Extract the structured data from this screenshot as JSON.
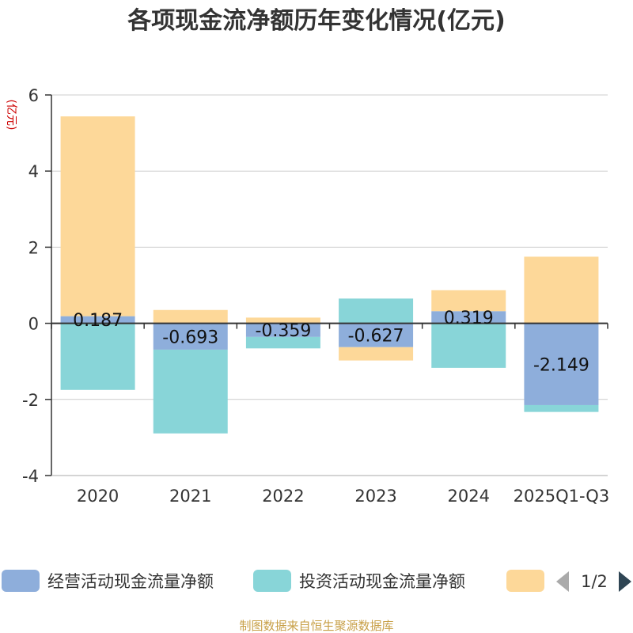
{
  "chart_data": {
    "type": "bar",
    "stacked": true,
    "title": "各项现金流净额历年变化情况(亿元)",
    "ylabel": "(亿元)",
    "xlabel": "",
    "categories": [
      "2020",
      "2021",
      "2022",
      "2023",
      "2024",
      "2025Q1-Q3"
    ],
    "ylim": [
      -4,
      6
    ],
    "yticks": [
      6,
      4,
      2,
      0,
      -2,
      -4
    ],
    "grid": true,
    "series": [
      {
        "name": "经营活动现金流量净额",
        "color": "#8eaedb",
        "values": [
          0.187,
          -0.693,
          -0.359,
          -0.627,
          0.319,
          -2.149
        ],
        "labels": [
          "0.187",
          "-0.693",
          "-0.359",
          "-0.627",
          "0.319",
          "-2.149"
        ]
      },
      {
        "name": "投资活动现金流量净额",
        "color": "#88d5d8",
        "values": [
          -1.75,
          -2.2,
          -0.3,
          0.65,
          -1.17,
          -0.18
        ]
      },
      {
        "name": "",
        "color": "#fdd899",
        "values": [
          5.25,
          0.35,
          0.15,
          -0.35,
          0.55,
          1.75
        ]
      }
    ],
    "legend": {
      "position": "bottom",
      "page": "1/2"
    },
    "source": "制图数据来自恒生聚源数据库"
  }
}
